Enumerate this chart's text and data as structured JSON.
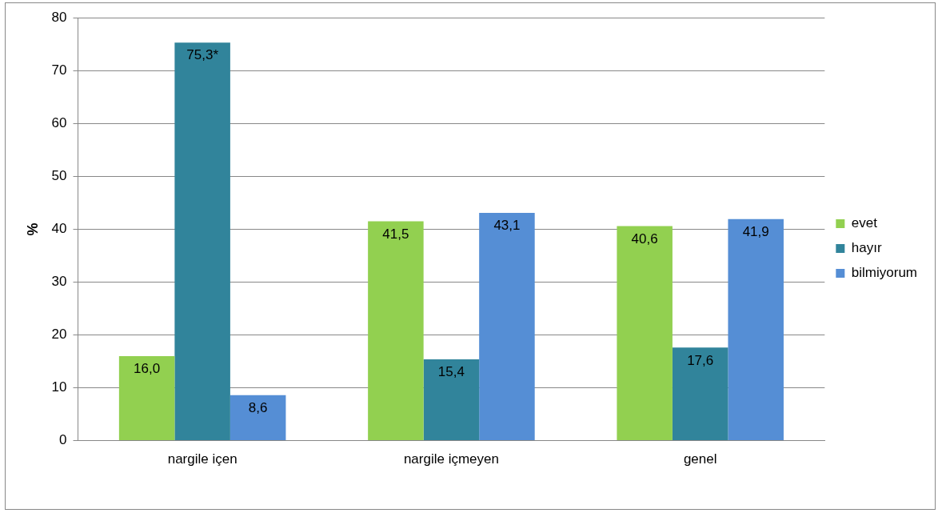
{
  "chart_data": {
    "type": "bar",
    "ylabel": "%",
    "categories": [
      "nargile içen",
      "nargile içmeyen",
      "genel"
    ],
    "series": [
      {
        "name": "evet",
        "color": "#92d050",
        "values": [
          16.0,
          41.5,
          40.6
        ],
        "value_labels": [
          "16,0",
          "41,5",
          "40,6"
        ]
      },
      {
        "name": "hayır",
        "color": "#31849b",
        "values": [
          75.3,
          15.4,
          17.6
        ],
        "value_labels": [
          "75,3*",
          "15,4",
          "17,6"
        ]
      },
      {
        "name": "bilmiyorum",
        "color": "#558ed5",
        "values": [
          8.6,
          43.1,
          41.9
        ],
        "value_labels": [
          "8,6",
          "43,1",
          "41,9"
        ]
      }
    ],
    "ylim": [
      0,
      80
    ],
    "yticks": [
      0,
      10,
      20,
      30,
      40,
      50,
      60,
      70,
      80
    ],
    "grid": "y",
    "legend": "right"
  }
}
